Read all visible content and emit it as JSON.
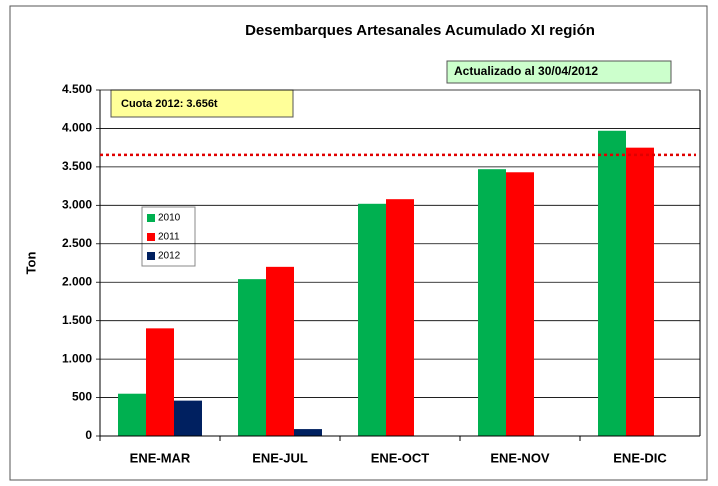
{
  "chart_data": {
    "type": "bar",
    "title": "Desembarques Artesanales Acumulado XI región",
    "y_label": "Ton",
    "annotations": [
      "Cuota 2012: 3.656t",
      "Actualizado al 30/04/2012"
    ],
    "reference_line": {
      "value": 3656,
      "color": "#e00000"
    },
    "categories": [
      "ENE-MAR",
      "ENE-JUL",
      "ENE-OCT",
      "ENE-NOV",
      "ENE-DIC"
    ],
    "series": [
      {
        "name": "2010",
        "color": "#00b050",
        "values": [
          550,
          2040,
          3020,
          3470,
          3970
        ]
      },
      {
        "name": "2011",
        "color": "#ff0000",
        "values": [
          1400,
          2200,
          3080,
          3430,
          3750
        ]
      },
      {
        "name": "2012",
        "color": "#002060",
        "values": [
          460,
          90,
          null,
          null,
          null
        ]
      }
    ],
    "ylim": [
      0,
      4500
    ],
    "yticks": [
      0,
      500,
      {
        "value": 1000,
        "label": "1.000"
      },
      {
        "value": 1500,
        "label": "1.500"
      },
      {
        "value": 2000,
        "label": "2.000"
      },
      {
        "value": 2500,
        "label": "2.500"
      },
      {
        "value": 3000,
        "label": "3.000"
      },
      {
        "value": 3500,
        "label": "3.500"
      },
      {
        "value": 4000,
        "label": "4.000"
      },
      {
        "value": 4500,
        "label": "4.500"
      }
    ],
    "grid": true
  }
}
